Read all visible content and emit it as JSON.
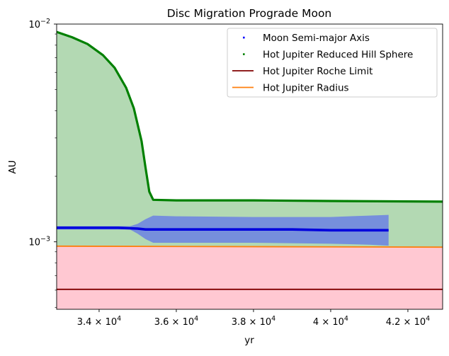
{
  "chart_data": {
    "type": "line",
    "title": "Disc Migration Prograde Moon",
    "xlabel": "yr",
    "ylabel": "AU",
    "xlim": [
      32900,
      42900
    ],
    "ylim": [
      0.00049,
      0.01
    ],
    "yscale": "log",
    "grid": false,
    "legend_position": "top-right",
    "x_ticks": [
      {
        "value": 34000,
        "mantissa": "3.4",
        "base": "× 10",
        "exp": "4"
      },
      {
        "value": 36000,
        "mantissa": "3.6",
        "base": "× 10",
        "exp": "4"
      },
      {
        "value": 38000,
        "mantissa": "3.8",
        "base": "× 10",
        "exp": "4"
      },
      {
        "value": 40000,
        "mantissa": "4",
        "base": "× 10",
        "exp": "4"
      },
      {
        "value": 42000,
        "mantissa": "4.2",
        "base": "× 10",
        "exp": "4"
      }
    ],
    "y_ticks": [
      {
        "value": 0.01,
        "base": "10",
        "exp": "−2"
      },
      {
        "value": 0.001,
        "base": "10",
        "exp": "−3"
      }
    ],
    "series": [
      {
        "name": "Moon Semi-major Axis",
        "style": "scatter",
        "color": "#0000ff",
        "x": [
          32900,
          33500,
          34000,
          34500,
          35000,
          35200,
          35400,
          35600,
          36000,
          37000,
          38000,
          39000,
          40000,
          41000,
          41500
        ],
        "y": [
          0.00116,
          0.00116,
          0.00116,
          0.00116,
          0.00115,
          0.00114,
          0.00114,
          0.00114,
          0.00114,
          0.00114,
          0.00114,
          0.00114,
          0.00113,
          0.00113,
          0.00113
        ],
        "band_x": [
          32900,
          34800,
          35000,
          35200,
          35400,
          36000,
          38000,
          40000,
          41000,
          41500
        ],
        "band_upper": [
          0.00118,
          0.00118,
          0.00121,
          0.00127,
          0.00132,
          0.00131,
          0.0013,
          0.0013,
          0.00132,
          0.00133
        ],
        "band_lower": [
          0.00114,
          0.00114,
          0.00109,
          0.00103,
          0.00099,
          0.00099,
          0.00099,
          0.00098,
          0.00097,
          0.00096
        ]
      },
      {
        "name": "Hot Jupiter Reduced Hill Sphere",
        "style": "scatter",
        "color": "#008000",
        "fill_color": "#b3d9b3",
        "x": [
          32900,
          33300,
          33700,
          34100,
          34400,
          34700,
          34900,
          35100,
          35200,
          35300,
          35400,
          36000,
          38000,
          40000,
          42900
        ],
        "y": [
          0.0092,
          0.0087,
          0.0081,
          0.0072,
          0.0063,
          0.0051,
          0.0041,
          0.0029,
          0.0022,
          0.0017,
          0.00156,
          0.00155,
          0.00155,
          0.00154,
          0.00153
        ]
      },
      {
        "name": "Hot Jupiter Roche Limit",
        "style": "line",
        "color": "#800000",
        "x": [
          32900,
          42900
        ],
        "y": [
          0.000605,
          0.000605
        ]
      },
      {
        "name": "Hot Jupiter Radius",
        "style": "line",
        "color": "#ff7f0e",
        "fill_color": "#ffc8d2",
        "x": [
          32900,
          42900
        ],
        "y": [
          0.000955,
          0.000945
        ]
      }
    ]
  }
}
